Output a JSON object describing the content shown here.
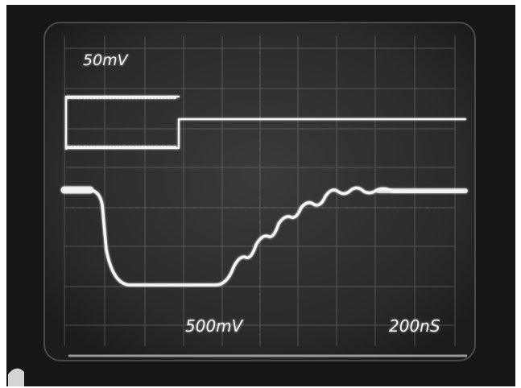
{
  "scope": {
    "channel1_scale": "50mV",
    "channel2_scale": "500mV",
    "timebase": "200nS"
  },
  "colors": {
    "trace": "#f5f5f5",
    "screen": "#2a2a2a",
    "bezel": "#1a1a1a",
    "grid": "#6a6a6a"
  }
}
